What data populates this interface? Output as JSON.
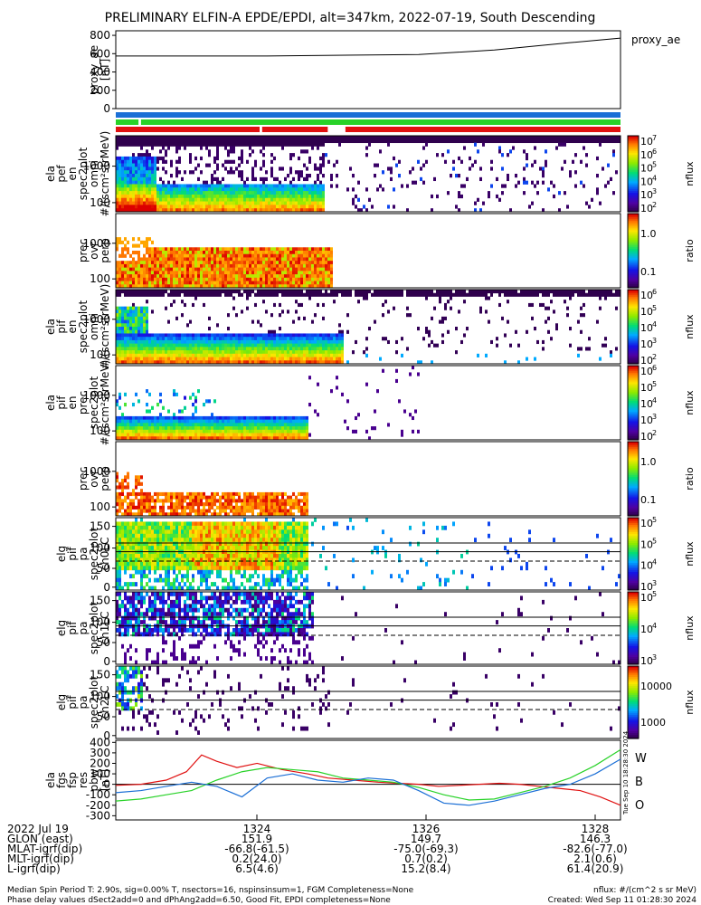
{
  "title": "PRELIMINARY ELFIN-A EPDE/EPDI, alt=347km, 2022-07-19, South Descending",
  "colors": {
    "black": "#000000",
    "blue": "#1b6fd6",
    "green": "#28d228",
    "red": "#e01010",
    "white": "#ffffff"
  },
  "chart_data": [
    {
      "id": "proxy_ae",
      "type": "line",
      "ylabel": [
        "proxy_ae",
        "[nT]"
      ],
      "yticks": [
        "800",
        "600",
        "400",
        "200",
        "0"
      ],
      "ylim": [
        0,
        850
      ],
      "legend": "proxy_ae",
      "series": [
        {
          "name": "proxy_ae",
          "x": [
            0,
            0.3,
            0.6,
            0.75,
            0.9,
            1.0
          ],
          "values": [
            575,
            575,
            590,
            640,
            720,
            770
          ]
        }
      ]
    },
    {
      "id": "status_bars",
      "type": "table",
      "rows": [
        {
          "color": "blue",
          "segments": [
            [
              0,
              1
            ]
          ]
        },
        {
          "color": "green",
          "segments": [
            [
              0,
              0.045
            ],
            [
              0.05,
              1
            ]
          ]
        },
        {
          "color": "red",
          "segments": [
            [
              0,
              0.285
            ],
            [
              0.29,
              0.42
            ],
            [
              0.455,
              1
            ]
          ]
        }
      ]
    },
    {
      "id": "epde_omni",
      "type": "heatmap",
      "ylabel": [
        "ela",
        "pef",
        "en",
        "spec2plot",
        "omni",
        "#/(scm²strMeV)"
      ],
      "yticks": [
        "1000",
        "100"
      ],
      "zlabel": "nflux",
      "ztick_base": "10",
      "ztick_exp": [
        "7",
        "6",
        "5",
        "4",
        "3",
        "2"
      ]
    },
    {
      "id": "epde_ratio",
      "type": "heatmap",
      "ylabel": [
        "prec",
        "ovr",
        "perp"
      ],
      "yticks": [
        "1000",
        "100"
      ],
      "zlabel": "ratio",
      "zticks": [
        "1.0",
        "0.1"
      ]
    },
    {
      "id": "epdi_omni",
      "type": "heatmap",
      "ylabel": [
        "ela",
        "pif",
        "en",
        "spec2plot",
        "omni",
        "#/(scm²strMeV)"
      ],
      "yticks": [
        "1000",
        "100"
      ],
      "zlabel": "nflux",
      "ztick_base": "10",
      "ztick_exp": [
        "6",
        "5",
        "4",
        "3",
        "2"
      ]
    },
    {
      "id": "epdi_prec",
      "type": "heatmap",
      "ylabel": [
        "ela",
        "pif",
        "en",
        "prec",
        "spec2plot",
        "#/(scm²strMeV)"
      ],
      "yticks": [
        "1000",
        "100"
      ],
      "zlabel": "nflux",
      "ztick_base": "10",
      "ztick_exp": [
        "6",
        "5",
        "4",
        "3",
        "2"
      ]
    },
    {
      "id": "epdi_ratio",
      "type": "heatmap",
      "ylabel": [
        "prec",
        "ovr",
        "perp"
      ],
      "yticks": [
        "1000",
        "100"
      ],
      "zlabel": "ratio",
      "zticks": [
        "1.0",
        "0.1"
      ]
    },
    {
      "id": "pa_ch0",
      "type": "heatmap",
      "ylabel": [
        "elg",
        "pif",
        "pa",
        "spec2plot",
        "ch0LC"
      ],
      "yticks": [
        "150",
        "100",
        "50",
        "0"
      ],
      "zlabel": "nflux",
      "ztick_base": "10",
      "ztick_exp": [
        "5",
        "5",
        "4",
        "3"
      ]
    },
    {
      "id": "pa_ch1",
      "type": "heatmap",
      "ylabel": [
        "elg",
        "pif",
        "pa",
        "spec2plot",
        "ch1LC"
      ],
      "yticks": [
        "150",
        "100",
        "50",
        "0"
      ],
      "zlabel": "nflux",
      "ztick_base": "10",
      "ztick_exp": [
        "5",
        "4",
        "3"
      ]
    },
    {
      "id": "pa_ch2",
      "type": "heatmap",
      "ylabel": [
        "elg",
        "pif",
        "pa",
        "spec2plot",
        "ch2LC"
      ],
      "yticks": [
        "150",
        "100",
        "50",
        "0"
      ],
      "zlabel": "nflux",
      "zticks": [
        "10000",
        "1000"
      ]
    },
    {
      "id": "fgs",
      "type": "line",
      "ylabel": [
        "ela",
        "fgs",
        "fsp",
        "res",
        "pbw",
        "[nT]"
      ],
      "yticks": [
        "400",
        "300",
        "200",
        "100",
        "0",
        "-100",
        "-200",
        "-300"
      ],
      "ylim": [
        -340,
        420
      ],
      "legend": [
        "W",
        "B",
        "O"
      ],
      "series": [
        {
          "name": "W",
          "color": "red",
          "x": [
            0,
            0.05,
            0.1,
            0.14,
            0.17,
            0.2,
            0.24,
            0.28,
            0.33,
            0.38,
            0.42,
            0.47,
            0.52,
            0.56,
            0.6,
            0.64,
            0.68,
            0.72,
            0.76,
            0.8,
            0.84,
            0.88,
            0.92,
            0.96,
            1.0
          ],
          "values": [
            -10,
            0,
            40,
            120,
            280,
            220,
            160,
            200,
            140,
            100,
            60,
            40,
            20,
            10,
            0,
            -20,
            -10,
            0,
            10,
            0,
            -20,
            -40,
            -60,
            -120,
            -200
          ]
        },
        {
          "name": "B",
          "color": "green",
          "x": [
            0,
            0.05,
            0.1,
            0.15,
            0.2,
            0.25,
            0.3,
            0.35,
            0.4,
            0.45,
            0.5,
            0.55,
            0.6,
            0.65,
            0.7,
            0.75,
            0.8,
            0.85,
            0.9,
            0.95,
            1.0
          ],
          "values": [
            -160,
            -140,
            -100,
            -60,
            40,
            120,
            160,
            140,
            120,
            60,
            40,
            20,
            -30,
            -100,
            -150,
            -140,
            -80,
            -20,
            60,
            180,
            330
          ]
        },
        {
          "name": "O",
          "color": "blue",
          "x": [
            0,
            0.05,
            0.1,
            0.15,
            0.2,
            0.25,
            0.3,
            0.35,
            0.4,
            0.45,
            0.5,
            0.55,
            0.6,
            0.65,
            0.7,
            0.75,
            0.8,
            0.85,
            0.9,
            0.95,
            1.0
          ],
          "values": [
            -80,
            -60,
            -20,
            20,
            -20,
            -120,
            60,
            100,
            40,
            20,
            60,
            40,
            -60,
            -180,
            -200,
            -160,
            -100,
            -40,
            0,
            100,
            240
          ]
        }
      ]
    }
  ],
  "xaxis": {
    "tick_labels": [
      "1324",
      "1326",
      "1328"
    ],
    "rows": [
      {
        "label": "2022 Jul 19",
        "values": [
          "",
          "",
          ""
        ]
      },
      {
        "label": "GLON (east)",
        "values": [
          "151.9",
          "149.7",
          "146.3"
        ]
      },
      {
        "label": "MLAT-igrf(dip)",
        "values": [
          "-66.8(-61.5)",
          "-75.0(-69.3)",
          "-82.6(-77.0)"
        ]
      },
      {
        "label": "MLT-igrf(dip)",
        "values": [
          "0.2(24.0)",
          "0.7(0.2)",
          "2.1(0.6)"
        ]
      },
      {
        "label": "L-igrf(dip)",
        "values": [
          "6.5(4.6)",
          "15.2(8.4)",
          "61.4(20.9)"
        ]
      }
    ]
  },
  "footer": {
    "line1": "Median Spin Period T: 2.90s, sig=0.00% T, nsectors=16, nspinsinsum=1, FGM Completeness=None",
    "line2": "Phase delay values dSect2add=0 and dPhAng2add=6.50, Good Fit, EPDI completeness=None",
    "units": "nflux: #/(cm^2 s sr MeV)",
    "created": "Created: Wed Sep 11 01:28:30 2024",
    "side_stamp": "Tue Sep 10 18:28:30 2024"
  }
}
